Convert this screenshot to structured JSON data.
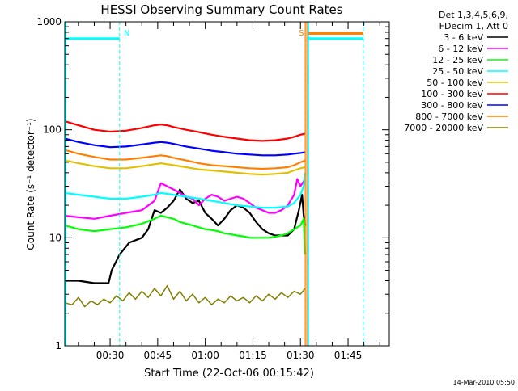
{
  "chart_data": {
    "type": "line",
    "title": "HESSI Observing Summary Count Rates",
    "ylabel": "Count Rate (s⁻¹ detector⁻¹)",
    "xlabel": "Start Time (22-Oct-06 00:15:42)",
    "timestamp": "14-Mar-2010 05:50",
    "y_scale": "log",
    "ylim": [
      1,
      1000
    ],
    "xlim_minutes": [
      15.7,
      118
    ],
    "y_ticks": [
      {
        "value": 1,
        "label": "1"
      },
      {
        "value": 10,
        "label": "10"
      },
      {
        "value": 100,
        "label": "100"
      },
      {
        "value": 1000,
        "label": "1000"
      }
    ],
    "x_ticks": [
      {
        "minutes": 30,
        "label": "00:30"
      },
      {
        "minutes": 45,
        "label": "00:45"
      },
      {
        "minutes": 60,
        "label": "01:00"
      },
      {
        "minutes": 75,
        "label": "01:15"
      },
      {
        "minutes": 90,
        "label": "01:30"
      },
      {
        "minutes": 105,
        "label": "01:45"
      }
    ],
    "legend_header": [
      "Det 1,3,4,5,6,9,",
      "FDecim 1, Att 0"
    ],
    "legend_placement": "right",
    "series": [
      {
        "name": "3 - 6 keV",
        "color": "#000000",
        "points": [
          [
            15.7,
            4
          ],
          [
            20,
            4
          ],
          [
            25,
            3.8
          ],
          [
            29.5,
            3.8
          ],
          [
            30.5,
            5
          ],
          [
            33,
            7
          ],
          [
            36,
            9
          ],
          [
            40,
            10
          ],
          [
            42,
            12
          ],
          [
            44,
            18
          ],
          [
            46,
            17
          ],
          [
            48,
            19
          ],
          [
            50,
            22
          ],
          [
            52,
            28
          ],
          [
            54,
            23
          ],
          [
            56,
            21
          ],
          [
            58,
            22
          ],
          [
            60,
            17
          ],
          [
            62,
            15
          ],
          [
            64,
            13
          ],
          [
            66,
            15
          ],
          [
            68,
            18
          ],
          [
            70,
            20
          ],
          [
            72,
            19
          ],
          [
            74,
            17
          ],
          [
            76,
            14
          ],
          [
            78,
            12
          ],
          [
            80,
            11
          ],
          [
            82,
            10.5
          ],
          [
            84,
            10.5
          ],
          [
            86,
            10.5
          ],
          [
            88,
            12
          ],
          [
            89.5,
            18
          ],
          [
            90.5,
            25
          ],
          [
            91,
            16
          ],
          [
            91.5,
            13
          ]
        ]
      },
      {
        "name": "6 - 12 keV",
        "color": "#ff00ff",
        "points": [
          [
            15.7,
            16
          ],
          [
            20,
            15.5
          ],
          [
            25,
            15
          ],
          [
            30,
            16
          ],
          [
            35,
            17
          ],
          [
            40,
            18
          ],
          [
            44,
            22
          ],
          [
            46,
            32
          ],
          [
            48,
            30
          ],
          [
            50,
            28
          ],
          [
            52,
            26
          ],
          [
            54,
            24
          ],
          [
            56,
            23
          ],
          [
            58,
            20
          ],
          [
            60,
            23
          ],
          [
            62,
            25
          ],
          [
            64,
            24
          ],
          [
            66,
            22
          ],
          [
            68,
            23
          ],
          [
            70,
            24
          ],
          [
            72,
            23
          ],
          [
            74,
            21
          ],
          [
            76,
            19
          ],
          [
            78,
            18
          ],
          [
            80,
            17
          ],
          [
            82,
            17
          ],
          [
            84,
            18
          ],
          [
            86,
            20
          ],
          [
            88,
            25
          ],
          [
            89,
            35
          ],
          [
            90,
            30
          ],
          [
            91.5,
            35
          ]
        ]
      },
      {
        "name": "12 - 25 keV",
        "color": "#00ff00",
        "points": [
          [
            15.7,
            13
          ],
          [
            20,
            12
          ],
          [
            25,
            11.5
          ],
          [
            30,
            12
          ],
          [
            35,
            12.5
          ],
          [
            40,
            13.5
          ],
          [
            44,
            15
          ],
          [
            46,
            16
          ],
          [
            48,
            15.5
          ],
          [
            50,
            15
          ],
          [
            52,
            14
          ],
          [
            54,
            13.5
          ],
          [
            56,
            13
          ],
          [
            58,
            12.5
          ],
          [
            60,
            12
          ],
          [
            62,
            11.8
          ],
          [
            64,
            11.5
          ],
          [
            66,
            11
          ],
          [
            68,
            10.8
          ],
          [
            70,
            10.5
          ],
          [
            72,
            10.3
          ],
          [
            74,
            10
          ],
          [
            76,
            10
          ],
          [
            78,
            10
          ],
          [
            80,
            10
          ],
          [
            82,
            10.2
          ],
          [
            84,
            10.5
          ],
          [
            86,
            11
          ],
          [
            88,
            12
          ],
          [
            90,
            13
          ],
          [
            91,
            15
          ],
          [
            91.5,
            7
          ]
        ]
      },
      {
        "name": "25 - 50 keV",
        "color": "#00ffff",
        "points": [
          [
            15.7,
            26
          ],
          [
            20,
            25
          ],
          [
            25,
            24
          ],
          [
            30,
            23
          ],
          [
            35,
            23
          ],
          [
            40,
            24
          ],
          [
            44,
            25
          ],
          [
            46,
            26
          ],
          [
            48,
            25.5
          ],
          [
            50,
            25
          ],
          [
            54,
            24
          ],
          [
            58,
            23
          ],
          [
            62,
            22
          ],
          [
            66,
            21
          ],
          [
            70,
            20
          ],
          [
            74,
            19.5
          ],
          [
            78,
            19
          ],
          [
            82,
            19
          ],
          [
            86,
            19.5
          ],
          [
            88,
            21
          ],
          [
            90,
            25
          ],
          [
            91,
            30
          ],
          [
            91.5,
            40
          ]
        ]
      },
      {
        "name": "50 - 100 keV",
        "color": "#e0c000",
        "points": [
          [
            15.7,
            52
          ],
          [
            20,
            49
          ],
          [
            25,
            46
          ],
          [
            30,
            44
          ],
          [
            35,
            44
          ],
          [
            40,
            46
          ],
          [
            44,
            48
          ],
          [
            46,
            49
          ],
          [
            48,
            48
          ],
          [
            50,
            47
          ],
          [
            54,
            45
          ],
          [
            58,
            43
          ],
          [
            62,
            42
          ],
          [
            66,
            41
          ],
          [
            70,
            40
          ],
          [
            74,
            39
          ],
          [
            78,
            38.5
          ],
          [
            82,
            39
          ],
          [
            86,
            40
          ],
          [
            88,
            42
          ],
          [
            90,
            44
          ],
          [
            91.5,
            45
          ]
        ]
      },
      {
        "name": "100 - 300 keV",
        "color": "#ff0000",
        "points": [
          [
            15.7,
            120
          ],
          [
            20,
            110
          ],
          [
            25,
            100
          ],
          [
            30,
            96
          ],
          [
            35,
            98
          ],
          [
            40,
            104
          ],
          [
            44,
            110
          ],
          [
            46,
            112
          ],
          [
            48,
            110
          ],
          [
            50,
            106
          ],
          [
            54,
            100
          ],
          [
            58,
            95
          ],
          [
            62,
            90
          ],
          [
            66,
            86
          ],
          [
            70,
            83
          ],
          [
            74,
            80
          ],
          [
            78,
            79
          ],
          [
            82,
            80
          ],
          [
            86,
            83
          ],
          [
            88,
            86
          ],
          [
            90,
            90
          ],
          [
            91.5,
            92
          ]
        ]
      },
      {
        "name": "300 - 800 keV",
        "color": "#0000ff",
        "points": [
          [
            15.7,
            83
          ],
          [
            20,
            77
          ],
          [
            25,
            72
          ],
          [
            30,
            69
          ],
          [
            35,
            70
          ],
          [
            40,
            73
          ],
          [
            44,
            76
          ],
          [
            46,
            77
          ],
          [
            48,
            76
          ],
          [
            50,
            74
          ],
          [
            54,
            70
          ],
          [
            58,
            67
          ],
          [
            62,
            64
          ],
          [
            66,
            62
          ],
          [
            70,
            60
          ],
          [
            74,
            59
          ],
          [
            78,
            58
          ],
          [
            82,
            58
          ],
          [
            86,
            59
          ],
          [
            88,
            60
          ],
          [
            90,
            61
          ],
          [
            91.5,
            62
          ]
        ]
      },
      {
        "name": "800 - 7000 keV",
        "color": "#ff8000",
        "points": [
          [
            15.7,
            65
          ],
          [
            20,
            60
          ],
          [
            25,
            56
          ],
          [
            30,
            53
          ],
          [
            35,
            53
          ],
          [
            40,
            55
          ],
          [
            44,
            57
          ],
          [
            46,
            58
          ],
          [
            48,
            57
          ],
          [
            50,
            55
          ],
          [
            54,
            52
          ],
          [
            58,
            49
          ],
          [
            62,
            47
          ],
          [
            66,
            46
          ],
          [
            70,
            45
          ],
          [
            74,
            44
          ],
          [
            78,
            43.5
          ],
          [
            82,
            44
          ],
          [
            86,
            45
          ],
          [
            88,
            47
          ],
          [
            90,
            50
          ],
          [
            91.5,
            52
          ]
        ]
      },
      {
        "name": "7000 - 20000 keV",
        "color": "#808000",
        "points": [
          [
            15.7,
            2.5
          ],
          [
            18,
            2.4
          ],
          [
            20,
            2.8
          ],
          [
            22,
            2.3
          ],
          [
            24,
            2.6
          ],
          [
            26,
            2.4
          ],
          [
            28,
            2.7
          ],
          [
            30,
            2.5
          ],
          [
            32,
            2.9
          ],
          [
            34,
            2.6
          ],
          [
            36,
            3.1
          ],
          [
            38,
            2.7
          ],
          [
            40,
            3.2
          ],
          [
            42,
            2.8
          ],
          [
            44,
            3.4
          ],
          [
            46,
            2.9
          ],
          [
            48,
            3.6
          ],
          [
            50,
            2.7
          ],
          [
            52,
            3.2
          ],
          [
            54,
            2.6
          ],
          [
            56,
            3.0
          ],
          [
            58,
            2.5
          ],
          [
            60,
            2.8
          ],
          [
            62,
            2.4
          ],
          [
            64,
            2.7
          ],
          [
            66,
            2.5
          ],
          [
            68,
            2.9
          ],
          [
            70,
            2.6
          ],
          [
            72,
            2.8
          ],
          [
            74,
            2.5
          ],
          [
            76,
            2.9
          ],
          [
            78,
            2.6
          ],
          [
            80,
            3.0
          ],
          [
            82,
            2.7
          ],
          [
            84,
            3.1
          ],
          [
            86,
            2.8
          ],
          [
            88,
            3.2
          ],
          [
            90,
            3.0
          ],
          [
            91.5,
            3.4
          ]
        ]
      }
    ],
    "markers": [
      {
        "label": "N",
        "minutes": 33,
        "color": "#00ffff",
        "bar_start_min": 15.7,
        "bar_end_min": 33,
        "bar_value": 700
      },
      {
        "label": "S",
        "minutes": 91.5,
        "color": "#ff8000",
        "bar_start_min": 92.5,
        "bar_end_min": 109.8,
        "bar_value": 780
      },
      {
        "label": "",
        "minutes": 109.8,
        "color": "#00ffff",
        "bar_start_min": 92.5,
        "bar_end_min": 109.8,
        "bar_value": 700
      }
    ],
    "orange_vertical_minutes": [
      91.5,
      92.0
    ],
    "cyan_vertical_minutes": [
      92.5
    ]
  }
}
